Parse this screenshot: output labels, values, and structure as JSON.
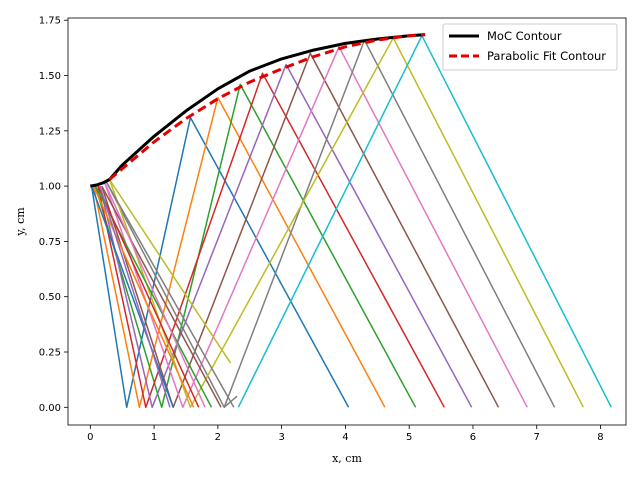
{
  "chart_data": {
    "type": "line",
    "title": "",
    "xlabel": "x, cm",
    "ylabel": "y, cm",
    "xlim": [
      -0.35,
      8.4
    ],
    "ylim": [
      -0.08,
      1.76
    ],
    "xticks": [
      0,
      1,
      2,
      3,
      4,
      5,
      6,
      7,
      8
    ],
    "yticks": [
      0.0,
      0.25,
      0.5,
      0.75,
      1.0,
      1.25,
      1.5,
      1.75
    ],
    "xtick_labels": [
      "0",
      "1",
      "2",
      "3",
      "4",
      "5",
      "6",
      "7",
      "8"
    ],
    "ytick_labels": [
      "0.00",
      "0.25",
      "0.50",
      "0.75",
      "1.00",
      "1.25",
      "1.50",
      "1.75"
    ],
    "grid": false,
    "legend_position": "top-right",
    "legend": [
      "MoC Contour",
      "Parabolic Fit Contour"
    ],
    "contour_points": [
      [
        0.0,
        1.0
      ],
      [
        0.1,
        1.005
      ],
      [
        0.2,
        1.015
      ],
      [
        0.3,
        1.03
      ],
      [
        0.5,
        1.095
      ],
      [
        1.0,
        1.225
      ],
      [
        1.5,
        1.34
      ],
      [
        2.0,
        1.44
      ],
      [
        2.5,
        1.52
      ],
      [
        3.0,
        1.575
      ],
      [
        3.5,
        1.615
      ],
      [
        4.0,
        1.645
      ],
      [
        4.5,
        1.665
      ],
      [
        5.0,
        1.68
      ],
      [
        5.25,
        1.685
      ]
    ],
    "fit_points": [
      [
        0.3,
        1.03
      ],
      [
        1.0,
        1.2
      ],
      [
        1.5,
        1.305
      ],
      [
        2.0,
        1.395
      ],
      [
        2.5,
        1.47
      ],
      [
        3.0,
        1.53
      ],
      [
        3.5,
        1.585
      ],
      [
        4.0,
        1.63
      ],
      [
        4.5,
        1.66
      ],
      [
        5.0,
        1.68
      ],
      [
        5.25,
        1.685
      ]
    ],
    "series": [
      {
        "color": "#1f77b4",
        "points": [
          [
            0.02,
            1.0
          ],
          [
            0.57,
            0.0
          ],
          [
            1.57,
            1.31
          ],
          [
            4.05,
            0.0
          ]
        ]
      },
      {
        "color": "#ff7f0e",
        "points": [
          [
            0.05,
            1.0
          ],
          [
            0.77,
            0.0
          ],
          [
            2.0,
            1.4
          ],
          [
            4.62,
            0.0
          ]
        ]
      },
      {
        "color": "#2ca02c",
        "points": [
          [
            0.08,
            1.0
          ],
          [
            1.12,
            0.0
          ],
          [
            2.35,
            1.46
          ],
          [
            5.1,
            0.0
          ]
        ]
      },
      {
        "color": "#d62728",
        "points": [
          [
            0.12,
            1.0
          ],
          [
            0.87,
            0.0
          ],
          [
            2.7,
            1.51
          ],
          [
            5.55,
            0.0
          ]
        ]
      },
      {
        "color": "#9467bd",
        "points": [
          [
            0.15,
            1.0
          ],
          [
            0.97,
            0.0
          ],
          [
            3.07,
            1.55
          ],
          [
            5.98,
            0.0
          ]
        ]
      },
      {
        "color": "#8c564b",
        "points": [
          [
            0.18,
            1.0
          ],
          [
            1.3,
            0.0
          ],
          [
            3.45,
            1.6
          ],
          [
            6.4,
            0.0
          ]
        ]
      },
      {
        "color": "#e377c2",
        "points": [
          [
            0.22,
            1.02
          ],
          [
            1.45,
            0.0
          ],
          [
            3.9,
            1.63
          ],
          [
            6.85,
            0.0
          ]
        ]
      },
      {
        "color": "#7f7f7f",
        "points": [
          [
            0.25,
            1.02
          ],
          [
            2.1,
            0.0
          ],
          [
            4.3,
            1.66
          ],
          [
            7.28,
            0.0
          ]
        ]
      },
      {
        "color": "#bcbd22",
        "points": [
          [
            0.3,
            1.03
          ],
          [
            1.57,
            0.0
          ],
          [
            4.75,
            1.67
          ],
          [
            7.73,
            0.0
          ]
        ]
      },
      {
        "color": "#17becf",
        "points": [
          [
            2.32,
            0.0
          ],
          [
            5.2,
            1.68
          ],
          [
            8.17,
            0.0
          ]
        ]
      },
      {
        "color": "#1f77b4",
        "points": [
          [
            0.02,
            1.0
          ],
          [
            1.3,
            0.0
          ]
        ]
      },
      {
        "color": "#ff7f0e",
        "points": [
          [
            0.05,
            1.0
          ],
          [
            1.62,
            0.0
          ]
        ]
      },
      {
        "color": "#2ca02c",
        "points": [
          [
            0.08,
            1.0
          ],
          [
            1.9,
            0.0
          ]
        ]
      },
      {
        "color": "#d62728",
        "points": [
          [
            0.12,
            1.0
          ],
          [
            1.7,
            0.0
          ]
        ]
      },
      {
        "color": "#9467bd",
        "points": [
          [
            0.15,
            1.0
          ],
          [
            1.25,
            0.0
          ]
        ]
      },
      {
        "color": "#8c564b",
        "points": [
          [
            0.18,
            1.0
          ],
          [
            2.05,
            0.0
          ]
        ]
      },
      {
        "color": "#e377c2",
        "points": [
          [
            0.22,
            1.02
          ],
          [
            1.8,
            0.0
          ]
        ]
      },
      {
        "color": "#7f7f7f",
        "points": [
          [
            0.25,
            1.02
          ],
          [
            2.25,
            0.0
          ]
        ]
      },
      {
        "color": "#bcbd22",
        "points": [
          [
            0.3,
            1.03
          ],
          [
            2.2,
            0.2
          ]
        ]
      },
      {
        "color": "#7f7f7f",
        "points": [
          [
            2.1,
            0.0
          ],
          [
            2.3,
            0.05
          ]
        ]
      }
    ]
  }
}
